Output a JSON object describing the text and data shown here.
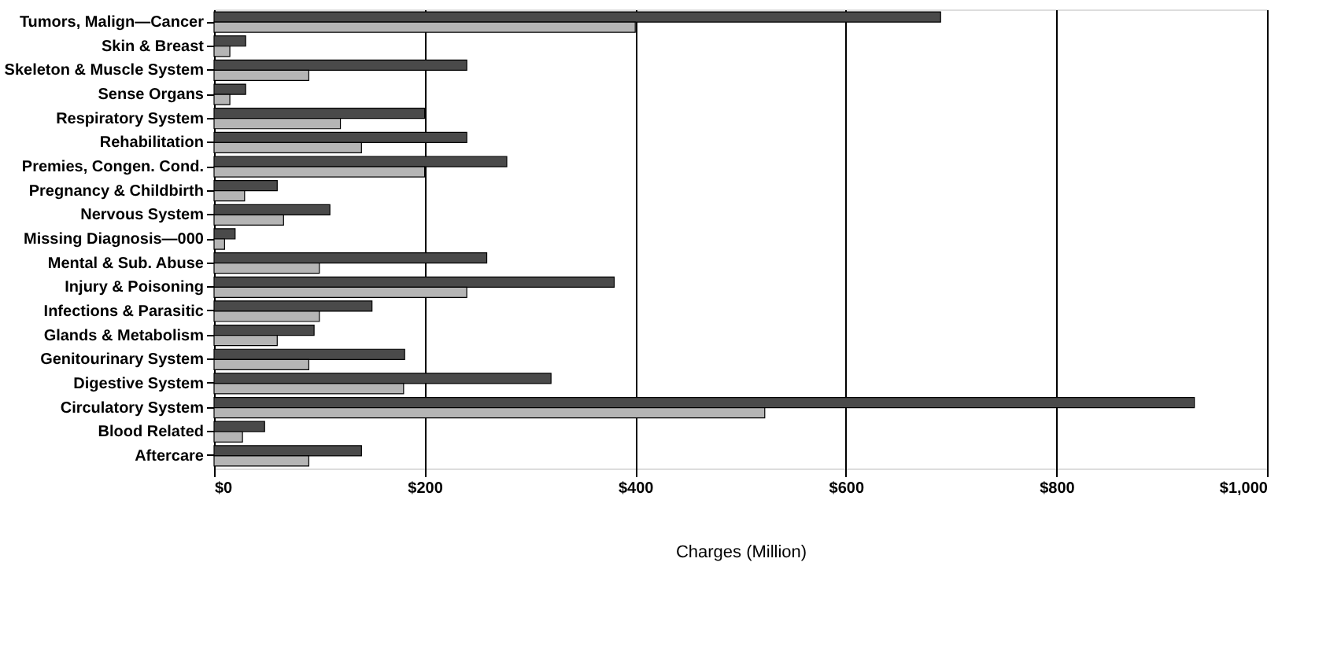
{
  "chart_data": {
    "type": "bar",
    "orientation": "horizontal",
    "xlabel": "Charges (Million)",
    "categories": [
      "Tumors, Malign—Cancer",
      "Skin & Breast",
      "Skeleton & Muscle System",
      "Sense Organs",
      "Respiratory System",
      "Rehabilitation",
      "Premies, Congen. Cond.",
      "Pregnancy & Childbirth",
      "Nervous System",
      "Missing Diagnosis—000",
      "Mental & Sub. Abuse",
      "Injury & Poisoning",
      "Infections & Parasitic",
      "Glands & Metabolism",
      "Genitourinary System",
      "Digestive System",
      "Circulatory System",
      "Blood Related",
      "Aftercare"
    ],
    "series": [
      {
        "color": "#4a4a4a",
        "values": [
          690,
          30,
          240,
          30,
          200,
          240,
          278,
          60,
          110,
          20,
          259,
          380,
          150,
          95,
          181,
          320,
          931,
          48,
          140
        ]
      },
      {
        "color": "#b5b5b5",
        "values": [
          400,
          15,
          90,
          15,
          120,
          140,
          200,
          29,
          66,
          10,
          100,
          240,
          100,
          60,
          90,
          180,
          523,
          27,
          90
        ]
      }
    ],
    "xlim": [
      0,
      1000
    ],
    "xticks": [
      {
        "value": 0,
        "label": "$0"
      },
      {
        "value": 200,
        "label": "$200"
      },
      {
        "value": 400,
        "label": "$400"
      },
      {
        "value": 600,
        "label": "$600"
      },
      {
        "value": 800,
        "label": "$800"
      },
      {
        "value": 1000,
        "label": "$1,000"
      }
    ],
    "grid": "x",
    "legend": false
  }
}
